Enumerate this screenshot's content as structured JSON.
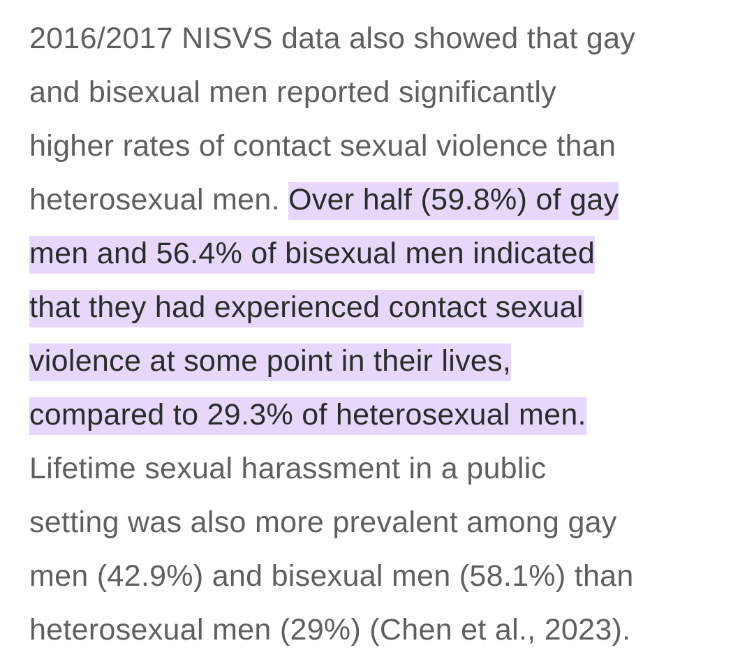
{
  "highlight_color": "#e6d7fb",
  "text_color": "#5f5f5f",
  "highlight_text_color": "#2b2b2b",
  "lines": [
    {
      "plain": "2016/2017 NISVS data also showed that gay",
      "highlight": ""
    },
    {
      "plain": "and bisexual men reported significantly",
      "highlight": ""
    },
    {
      "plain": "higher rates of contact sexual violence than",
      "highlight": ""
    },
    {
      "plain": "heterosexual men. ",
      "highlight": "Over half (59.8%) of gay"
    },
    {
      "plain": "",
      "highlight": "men and 56.4% of bisexual men indicated"
    },
    {
      "plain": "",
      "highlight": "that they had experienced contact sexual"
    },
    {
      "plain": "",
      "highlight": "violence at some point in their lives,"
    },
    {
      "plain": "",
      "highlight": "compared to 29.3% of heterosexual men."
    },
    {
      "plain": "Lifetime sexual harassment in a public",
      "highlight": ""
    },
    {
      "plain": "setting was also more prevalent among gay",
      "highlight": ""
    },
    {
      "plain": "men (42.9%) and bisexual men (58.1%) than",
      "highlight": ""
    },
    {
      "plain": "heterosexual men (29%) (Chen et al., 2023).",
      "highlight": ""
    }
  ]
}
